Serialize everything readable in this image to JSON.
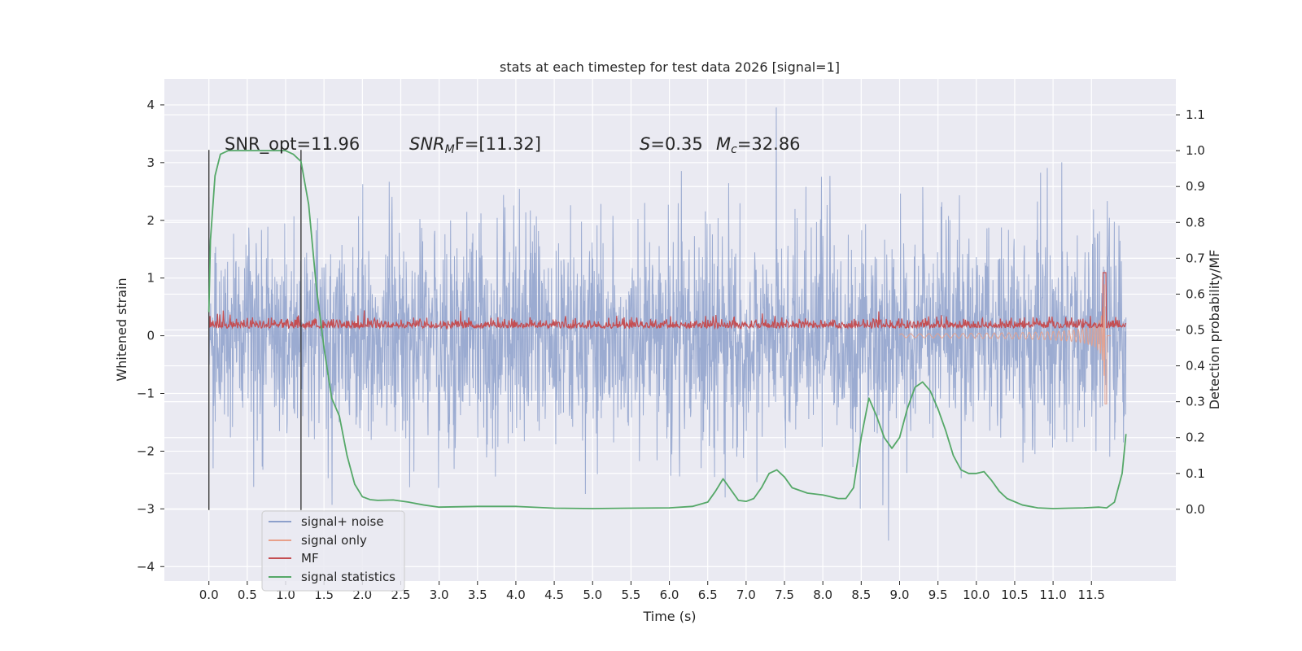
{
  "chart_data": {
    "type": "line",
    "title": "stats at each timestep for test data 2026 [signal=1]",
    "xlabel": "Time (s)",
    "ylabel": "Whitened strain",
    "ylabel_right": "Detection probability/MF",
    "xlim": [
      -0.58,
      12.6
    ],
    "ylim": [
      -4.25,
      4.45
    ],
    "ylim_right": [
      -0.2,
      1.2
    ],
    "x_ticks": [
      "0.0",
      "0.5",
      "1.0",
      "1.5",
      "2.0",
      "2.5",
      "3.0",
      "3.5",
      "4.0",
      "4.5",
      "5.0",
      "5.5",
      "6.0",
      "6.5",
      "7.0",
      "7.5",
      "8.0",
      "8.5",
      "9.0",
      "9.5",
      "10.0",
      "10.5",
      "11.0",
      "11.5"
    ],
    "y_ticks": [
      "4",
      "3",
      "2",
      "1",
      "0",
      "−1",
      "−2",
      "−3",
      "−4"
    ],
    "y_ticks_right": [
      "1.1",
      "1.0",
      "0.9",
      "0.8",
      "0.7",
      "0.6",
      "0.5",
      "0.4",
      "0.3",
      "0.2",
      "0.1",
      "0.0"
    ],
    "grid": true,
    "legend_position": "lower-left",
    "annotations": {
      "snr_opt": "SNR_opt=11.96",
      "snr_mf_name": "SNR",
      "snr_mf_sub": "M",
      "snr_mf_rest": "F=[11.32]",
      "s_name": "S",
      "s_value": "=0.35",
      "mc_name": "M",
      "mc_sub": "c",
      "mc_value": "=32.86"
    },
    "vlines": [
      0.0,
      1.2
    ],
    "series": [
      {
        "name": "signal+ noise",
        "color": "#8da0cb",
        "axis": "left",
        "description_range": [
          -3.5,
          4.1
        ]
      },
      {
        "name": "signal only",
        "color": "#e8a08a",
        "axis": "left"
      },
      {
        "name": "MF",
        "color": "#c44e52",
        "axis": "right"
      },
      {
        "name": "signal statistics",
        "color": "#55a868",
        "axis": "right",
        "x": [
          0.0,
          0.02,
          0.08,
          0.15,
          0.25,
          0.4,
          0.6,
          0.8,
          1.0,
          1.1,
          1.2,
          1.3,
          1.4,
          1.5,
          1.6,
          1.7,
          1.8,
          1.9,
          2.0,
          2.1,
          2.2,
          2.4,
          2.6,
          2.8,
          3.0,
          3.5,
          4.0,
          4.5,
          5.0,
          5.5,
          6.0,
          6.3,
          6.5,
          6.6,
          6.7,
          6.8,
          6.9,
          7.0,
          7.1,
          7.2,
          7.3,
          7.4,
          7.5,
          7.6,
          7.8,
          8.0,
          8.2,
          8.3,
          8.4,
          8.5,
          8.6,
          8.7,
          8.8,
          8.9,
          9.0,
          9.1,
          9.2,
          9.3,
          9.4,
          9.5,
          9.6,
          9.7,
          9.8,
          9.9,
          10.0,
          10.1,
          10.2,
          10.3,
          10.4,
          10.6,
          10.8,
          11.0,
          11.2,
          11.4,
          11.6,
          11.7,
          11.8,
          11.9,
          11.95
        ],
        "y": [
          0.55,
          0.75,
          0.93,
          0.99,
          1.0,
          1.0,
          1.0,
          1.0,
          1.0,
          0.99,
          0.97,
          0.85,
          0.62,
          0.45,
          0.31,
          0.26,
          0.15,
          0.07,
          0.035,
          0.027,
          0.025,
          0.026,
          0.02,
          0.012,
          0.006,
          0.008,
          0.008,
          0.003,
          0.002,
          0.003,
          0.004,
          0.008,
          0.02,
          0.05,
          0.085,
          0.055,
          0.025,
          0.022,
          0.03,
          0.06,
          0.1,
          0.11,
          0.09,
          0.06,
          0.045,
          0.04,
          0.03,
          0.03,
          0.06,
          0.2,
          0.31,
          0.26,
          0.2,
          0.17,
          0.2,
          0.28,
          0.34,
          0.355,
          0.33,
          0.28,
          0.22,
          0.15,
          0.11,
          0.1,
          0.1,
          0.105,
          0.08,
          0.05,
          0.03,
          0.012,
          0.004,
          0.002,
          0.003,
          0.004,
          0.006,
          0.004,
          0.02,
          0.1,
          0.21
        ]
      }
    ]
  }
}
